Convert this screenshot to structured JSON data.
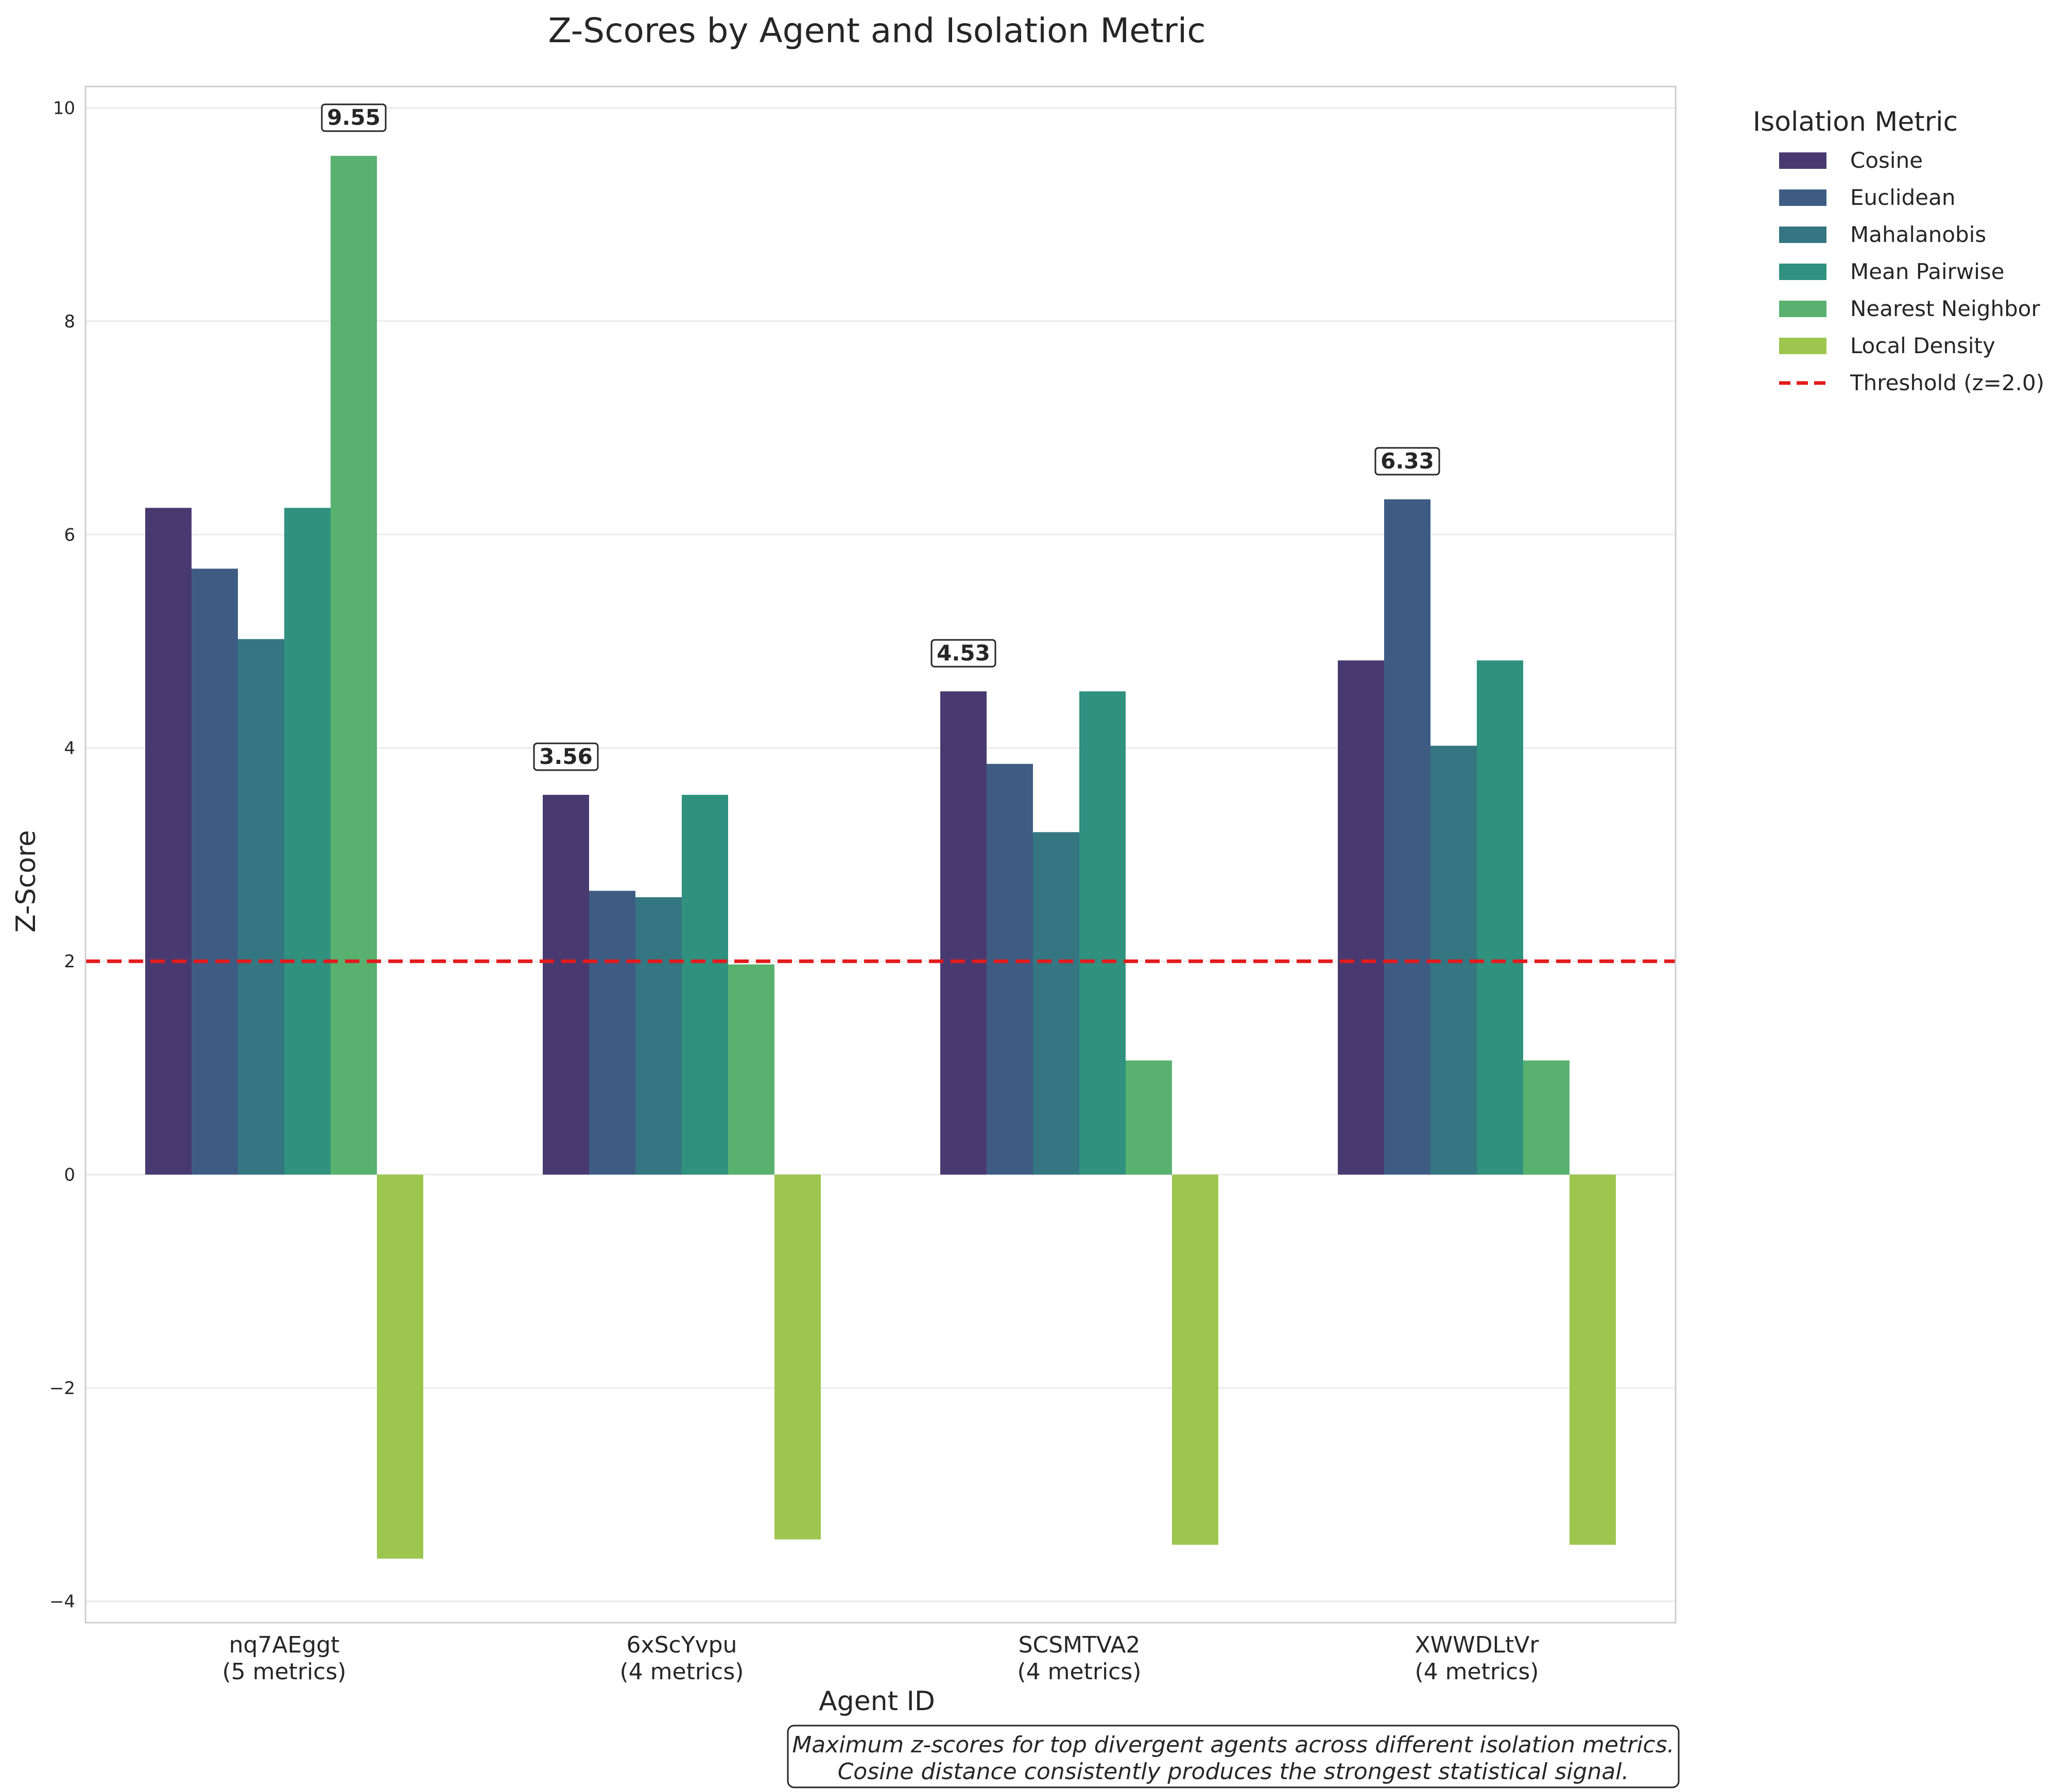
{
  "chart_data": {
    "type": "bar",
    "title": "Z-Scores by Agent and Isolation Metric",
    "xlabel": "Agent ID",
    "ylabel": "Z-Score",
    "ylim": [
      -4.2,
      10.2
    ],
    "yticks": [
      -4,
      -2,
      0,
      2,
      4,
      6,
      8,
      10
    ],
    "ytick_labels": [
      "−4",
      "−2",
      "0",
      "2",
      "4",
      "6",
      "8",
      "10"
    ],
    "grid": true,
    "legend_title": "Isolation Metric",
    "legend_position": "outside-right",
    "categories": [
      {
        "id": "nq7AEggt",
        "note": "(5 metrics)"
      },
      {
        "id": "6xScYvpu",
        "note": "(4 metrics)"
      },
      {
        "id": "SCSMTVA2",
        "note": "(4 metrics)"
      },
      {
        "id": "XWWDLtVr",
        "note": "(4 metrics)"
      }
    ],
    "series": [
      {
        "name": "Cosine",
        "color": "#483a70",
        "values": [
          6.25,
          3.56,
          4.53,
          4.82
        ]
      },
      {
        "name": "Euclidean",
        "color": "#3e5c83",
        "values": [
          5.68,
          2.66,
          3.85,
          6.33
        ]
      },
      {
        "name": "Mahalanobis",
        "color": "#347682",
        "values": [
          5.02,
          2.6,
          3.21,
          4.02
        ]
      },
      {
        "name": "Mean Pairwise",
        "color": "#30917f",
        "values": [
          6.25,
          3.56,
          4.53,
          4.82
        ]
      },
      {
        "name": "Nearest Neighbor",
        "color": "#59b16f",
        "values": [
          9.55,
          1.97,
          1.07,
          1.07
        ]
      },
      {
        "name": "Local Density",
        "color": "#9cc64e",
        "values": [
          -3.6,
          -3.42,
          -3.47,
          -3.47
        ]
      }
    ],
    "threshold": {
      "value": 2.0,
      "label": "Threshold (z=2.0)",
      "color": "#e31a1c"
    },
    "peak_labels": [
      "9.55",
      "3.56",
      "4.53",
      "6.33"
    ],
    "caption": [
      "Maximum z-scores for top divergent agents across different isolation metrics.",
      "Cosine distance consistently produces the strongest statistical signal."
    ]
  }
}
